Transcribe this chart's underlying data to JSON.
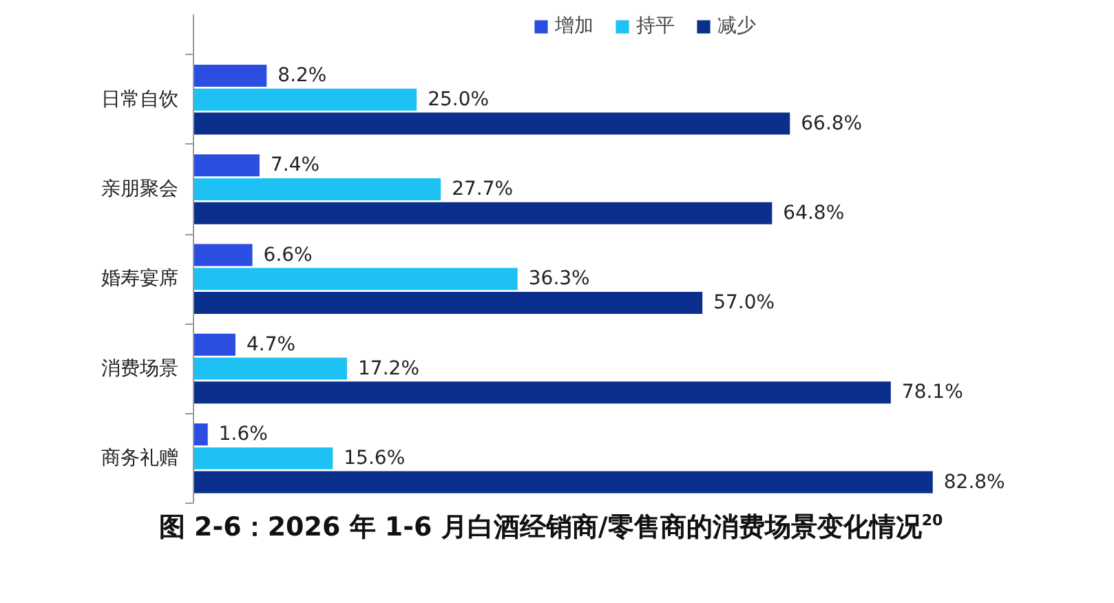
{
  "chart_data": {
    "type": "bar",
    "orientation": "horizontal",
    "title": "图 2-6：2026 年 1-6 月白酒经销商/零售商的消费场景变化情况$^{20}$",
    "categories": [
      "日常自饮",
      "亲朋聚会",
      "婚寿宴席",
      "消费场景",
      "商务礼赠"
    ],
    "series": [
      {
        "name": "增加",
        "color": "#2b4de0",
        "values": [
          8.2,
          7.4,
          6.6,
          4.7,
          1.6
        ],
        "value_labels": [
          "8.2%",
          "7.4%",
          "6.6%",
          "4.7%",
          "1.6%"
        ]
      },
      {
        "name": "持平",
        "color": "#1ec1f4",
        "values": [
          25.0,
          27.7,
          36.3,
          17.2,
          15.6
        ],
        "value_labels": [
          "25.0%",
          "27.7%",
          "36.3%",
          "17.2%",
          "15.6%"
        ]
      },
      {
        "name": "减少",
        "color": "#0b2f8c",
        "values": [
          66.8,
          64.8,
          57.0,
          78.1,
          82.8
        ],
        "value_labels": [
          "66.8%",
          "64.8%",
          "57.0%",
          "78.1%",
          "82.8%"
        ]
      }
    ],
    "legend": "top",
    "grid": false
  }
}
